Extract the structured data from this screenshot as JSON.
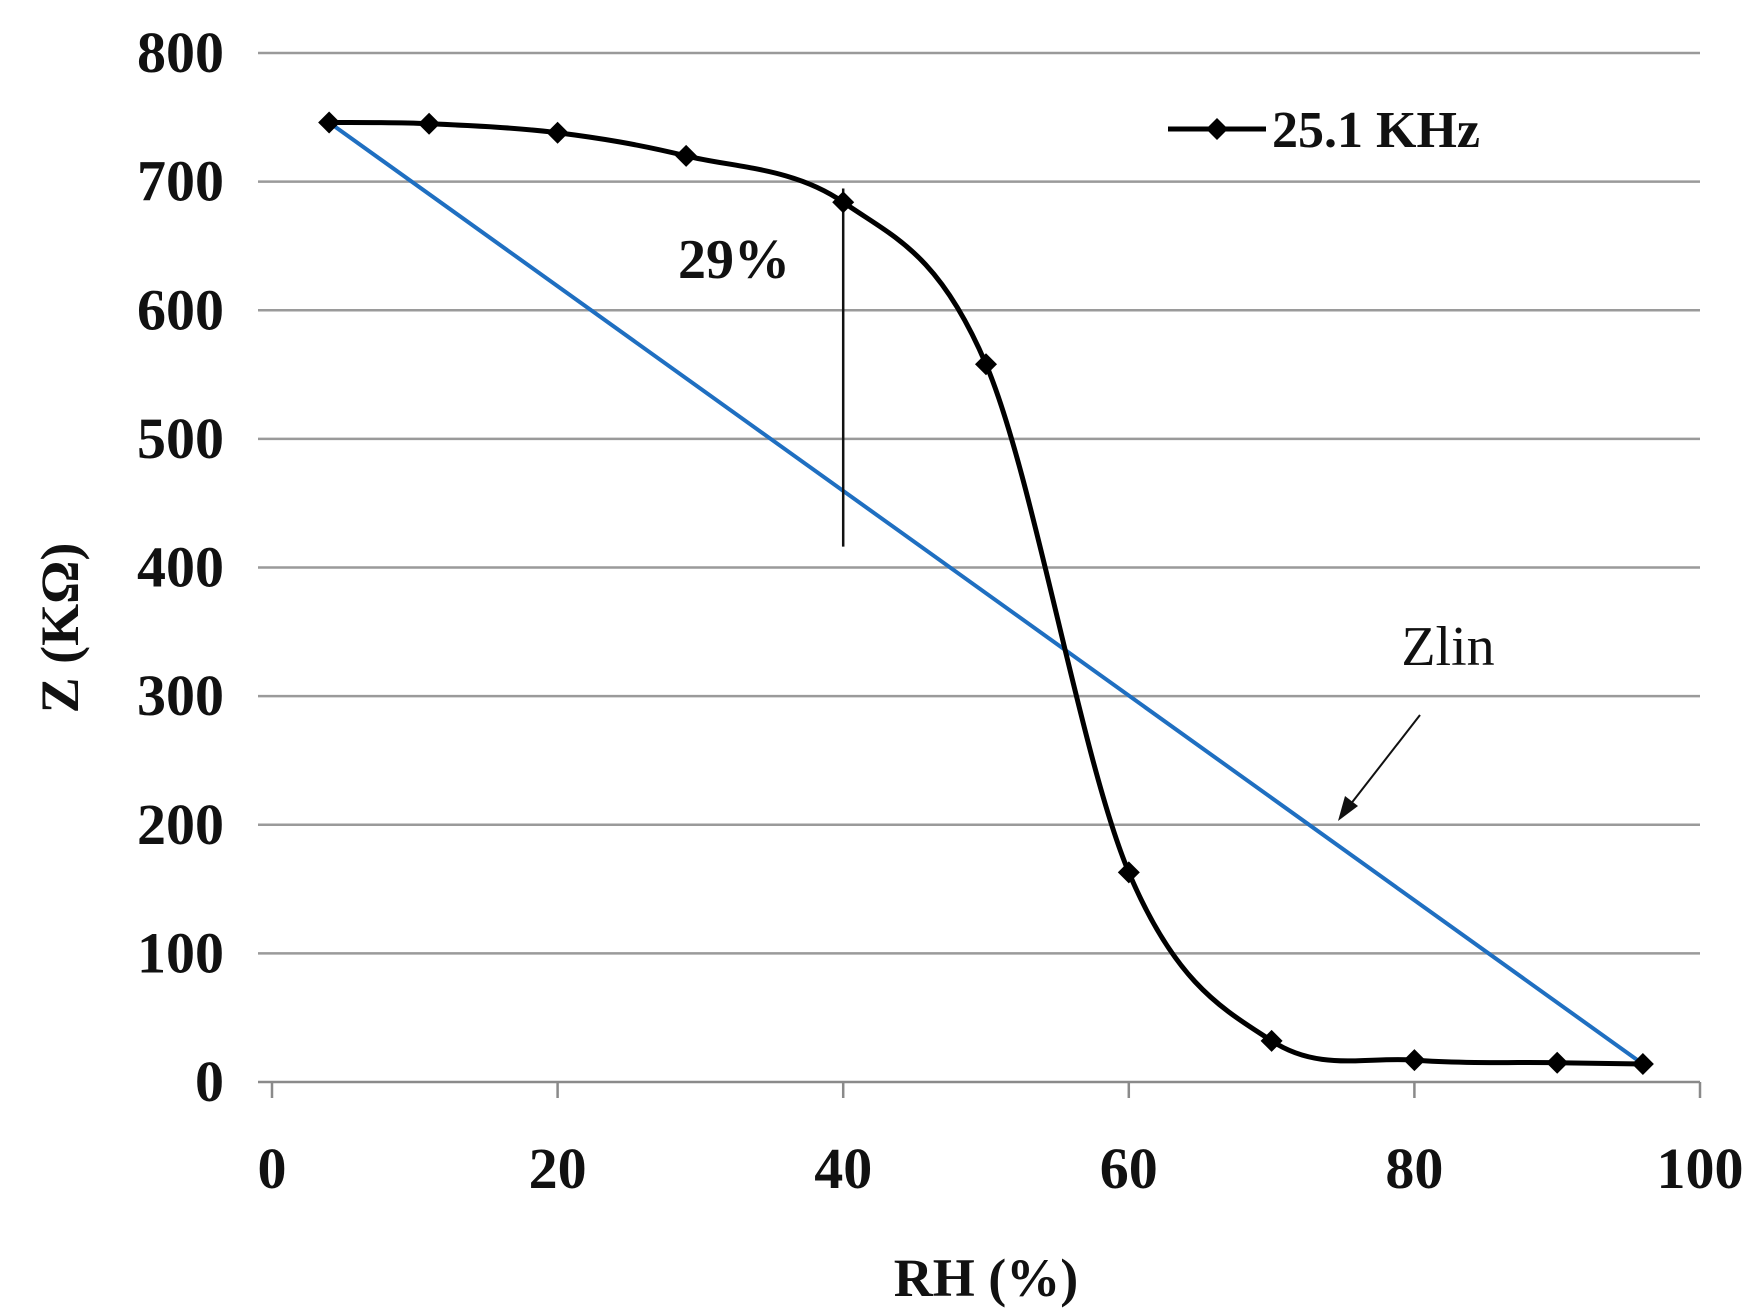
{
  "chart_data": {
    "type": "line",
    "xlabel": "RH (%)",
    "ylabel": "Z (KΩ)",
    "xlim": [
      0,
      100
    ],
    "ylim": [
      0,
      800
    ],
    "x_ticks": [
      "0",
      "20",
      "40",
      "60",
      "80",
      "100"
    ],
    "y_ticks": [
      "0",
      "100",
      "200",
      "300",
      "400",
      "500",
      "600",
      "700",
      "800"
    ],
    "grid": "horizontal",
    "legend_position": "top-right",
    "series": [
      {
        "name": "25.1 KHz",
        "color": "#000000",
        "marker": "diamond",
        "x": [
          4,
          11,
          20,
          29,
          40,
          50,
          60,
          70,
          80,
          90,
          96
        ],
        "y": [
          746,
          745,
          738,
          720,
          684,
          558,
          163,
          32,
          17,
          15,
          14
        ]
      }
    ],
    "reference_line": {
      "color": "#1f6fc1",
      "x": [
        4,
        96
      ],
      "y": [
        746,
        14
      ]
    },
    "annotations": [
      {
        "text": "29%",
        "x1": 40,
        "y1_top": 690,
        "y1_bottom": 452
      },
      {
        "text": "Zlin",
        "arrow_from": [
          80,
          300
        ],
        "arrow_to": [
          75,
          200
        ]
      }
    ]
  }
}
